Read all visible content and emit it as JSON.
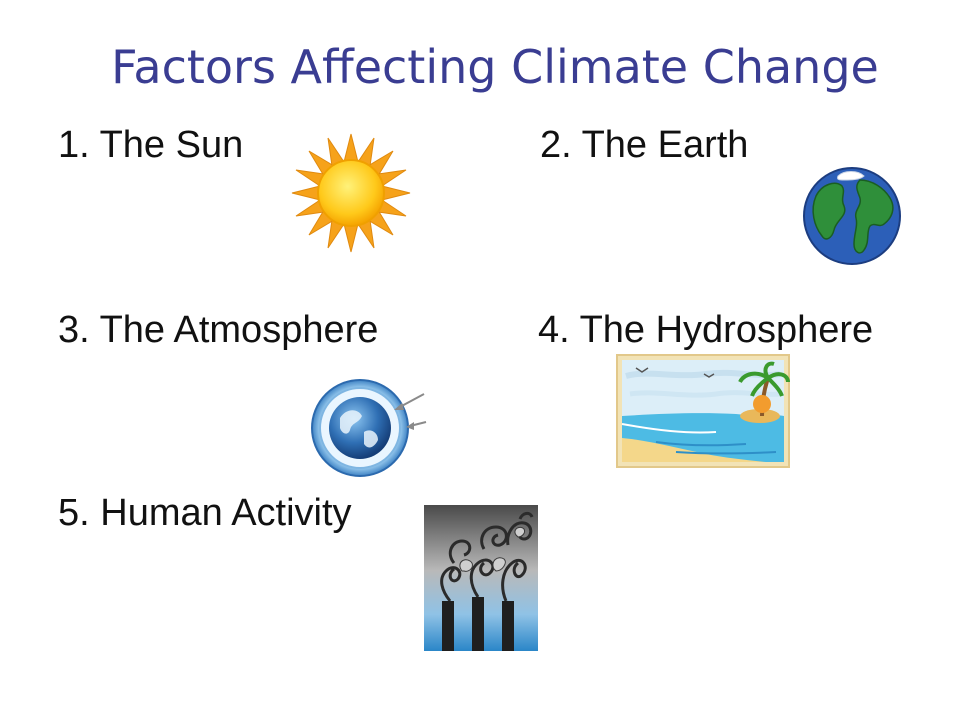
{
  "slide": {
    "title": "Factors Affecting Climate Change",
    "items": [
      {
        "label": "1.   The Sun",
        "icon": "sun-icon"
      },
      {
        "label": "2.  The Earth",
        "icon": "earth-icon"
      },
      {
        "label": "3.  The Atmosphere",
        "icon": "atmosphere-icon"
      },
      {
        "label": "4. The Hydrosphere",
        "icon": "beach-icon"
      },
      {
        "label": "5.  Human Activity",
        "icon": "factory-smoke-icon"
      }
    ]
  },
  "colors": {
    "title": "#3a3d92",
    "text": "#111111",
    "background": "#ffffff"
  }
}
